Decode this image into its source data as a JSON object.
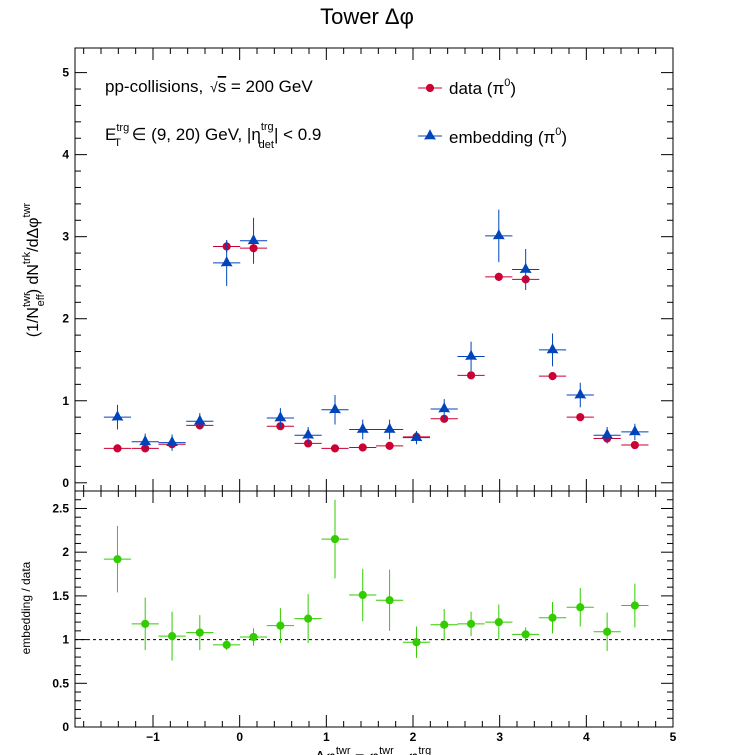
{
  "chart_data": [
    {
      "type": "scatter",
      "panel": "top",
      "title": "Tower Δφ",
      "ylabel": {
        "parts": [
          "(1/N",
          "twr",
          "eff",
          ") dN",
          "trk",
          "/dΔφ",
          "twr"
        ]
      },
      "xlim": [
        -1.9,
        5.0
      ],
      "ylim": [
        -0.1,
        5.3
      ],
      "yticks": [
        0,
        1,
        2,
        3,
        4,
        5
      ],
      "grid": false,
      "legend_position": "top-right",
      "annotations": {
        "line1_prefix": "pp-collisions, ",
        "line1_sqrt": "s",
        "line1_suffix": " = 200 GeV",
        "line2_E": "E",
        "line2_sub": "T",
        "line2_sup": "trg",
        "line2_mid": " ∈ (9, 20) GeV, |η",
        "line2_eta_sup": "trg",
        "line2_eta_sub": "det",
        "line2_end": "| < 0.9"
      },
      "x": [
        -1.41,
        -1.09,
        -0.78,
        -0.46,
        -0.15,
        0.16,
        0.47,
        0.79,
        1.1,
        1.42,
        1.73,
        2.04,
        2.36,
        2.67,
        2.99,
        3.3,
        3.61,
        3.93,
        4.24,
        4.56
      ],
      "x_halfwidth": 0.157,
      "series": [
        {
          "name": "data (π",
          "name_sup": "0",
          "name_end": ")",
          "color": "#cc0033",
          "marker": "circle",
          "values": [
            0.42,
            0.42,
            0.47,
            0.7,
            2.88,
            2.86,
            0.69,
            0.48,
            0.42,
            0.43,
            0.45,
            0.56,
            0.78,
            1.31,
            2.51,
            2.48,
            1.3,
            0.8,
            0.54,
            0.46
          ],
          "errors": [
            0.02,
            0.02,
            0.02,
            0.03,
            0.07,
            0.07,
            0.03,
            0.02,
            0.02,
            0.02,
            0.02,
            0.03,
            0.03,
            0.04,
            0.05,
            0.05,
            0.03,
            0.03,
            0.02,
            0.02
          ]
        },
        {
          "name": "embedding (π",
          "name_sup": "0",
          "name_end": ")",
          "color": "#0044bb",
          "marker": "star",
          "values": [
            0.8,
            0.5,
            0.49,
            0.75,
            2.68,
            2.95,
            0.79,
            0.58,
            0.89,
            0.65,
            0.65,
            0.55,
            0.9,
            1.54,
            3.01,
            2.6,
            1.62,
            1.07,
            0.58,
            0.62
          ],
          "errors": [
            0.15,
            0.1,
            0.1,
            0.1,
            0.28,
            0.28,
            0.12,
            0.1,
            0.18,
            0.12,
            0.12,
            0.08,
            0.12,
            0.18,
            0.32,
            0.25,
            0.2,
            0.15,
            0.1,
            0.1
          ]
        }
      ]
    },
    {
      "type": "scatter",
      "panel": "ratio",
      "ylabel": "embedding / data",
      "xlabel": {
        "parts": [
          "Δφ",
          "twr",
          " = φ",
          "twr",
          " - φ",
          "trg"
        ]
      },
      "xlim": [
        -1.9,
        5.0
      ],
      "ylim": [
        0.0,
        2.7
      ],
      "xticks": [
        -1,
        0,
        1,
        2,
        3,
        4,
        5
      ],
      "xtick_labels": [
        "−1",
        "0",
        "1",
        "2",
        "3",
        "4",
        "5"
      ],
      "yticks": [
        0,
        0.5,
        1,
        1.5,
        2,
        2.5
      ],
      "ytick_labels": [
        "0",
        "0.5",
        "1",
        "1.5",
        "2",
        "2.5"
      ],
      "reference_line": 1.0,
      "color": "#33cc00",
      "x": [
        -1.41,
        -1.09,
        -0.78,
        -0.46,
        -0.15,
        0.16,
        0.47,
        0.79,
        1.1,
        1.42,
        1.73,
        2.04,
        2.36,
        2.67,
        2.99,
        3.3,
        3.61,
        3.93,
        4.24,
        4.56
      ],
      "x_halfwidth": 0.157,
      "values": [
        1.92,
        1.18,
        1.04,
        1.08,
        0.94,
        1.03,
        1.16,
        1.24,
        2.15,
        1.51,
        1.45,
        0.97,
        1.17,
        1.18,
        1.2,
        1.06,
        1.25,
        1.37,
        1.09,
        1.39
      ],
      "errors": [
        0.38,
        0.3,
        0.28,
        0.2,
        0.06,
        0.1,
        0.2,
        0.28,
        0.45,
        0.3,
        0.35,
        0.18,
        0.18,
        0.14,
        0.2,
        0.08,
        0.18,
        0.22,
        0.22,
        0.25
      ]
    }
  ]
}
